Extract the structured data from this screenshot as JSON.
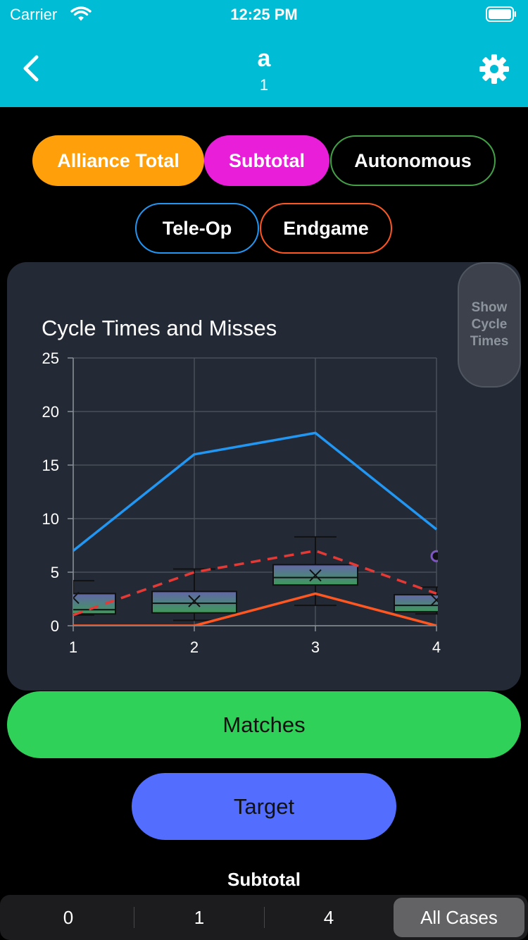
{
  "status": {
    "carrier": "Carrier",
    "time": "12:25 PM"
  },
  "nav": {
    "title": "a",
    "subtitle": "1"
  },
  "filters": {
    "alliance_total": "Alliance Total",
    "subtotal": "Subtotal",
    "autonomous": "Autonomous",
    "teleop": "Tele-Op",
    "endgame": "Endgame"
  },
  "chart_toggle": {
    "label": "Show Cycle Times"
  },
  "colors": {
    "nav_bg": "#00bcd4",
    "alliance": "#ff9f0a",
    "subtotal": "#e81ed9",
    "autonomous": "#43a047",
    "teleop": "#2196f3",
    "endgame": "#ff5722",
    "matches_btn": "#30d158",
    "target_btn": "#536dfe"
  },
  "chart_data": {
    "type": "line",
    "title": "Cycle Times and Misses",
    "x": [
      1,
      2,
      3,
      4
    ],
    "ylim": [
      0,
      25
    ],
    "yticks": [
      0,
      5,
      10,
      15,
      20,
      25
    ],
    "grid": true,
    "series": [
      {
        "color": "#2196f3",
        "style": "solid",
        "values": [
          7,
          16,
          18,
          9
        ]
      },
      {
        "color": "#ff5722",
        "style": "solid",
        "values": [
          0,
          0,
          3,
          0
        ]
      },
      {
        "color": "#e53935",
        "style": "dashed",
        "values": [
          1,
          5,
          7,
          3
        ]
      }
    ],
    "boxes": [
      {
        "x": 1,
        "min": 1,
        "q1": 1.1,
        "median": 1.5,
        "q3": 3.0,
        "max": 4.2,
        "mean": 2.6
      },
      {
        "x": 2,
        "min": 0.5,
        "q1": 1.2,
        "median": 2.1,
        "q3": 3.2,
        "max": 5.3,
        "mean": 2.3
      },
      {
        "x": 3,
        "min": 1.9,
        "q1": 3.8,
        "median": 4.5,
        "q3": 5.7,
        "max": 8.3,
        "mean": 4.7
      },
      {
        "x": 4,
        "min": 1.1,
        "q1": 1.3,
        "median": 1.9,
        "q3": 2.9,
        "max": 3.6,
        "mean": 2.4
      }
    ],
    "outliers": [
      {
        "x": 4,
        "y": 6.5
      }
    ]
  },
  "actions": {
    "matches": "Matches",
    "target": "Target"
  },
  "segment": {
    "label": "Subtotal",
    "options": [
      "0",
      "1",
      "4",
      "All Cases"
    ],
    "selected": "All Cases"
  }
}
